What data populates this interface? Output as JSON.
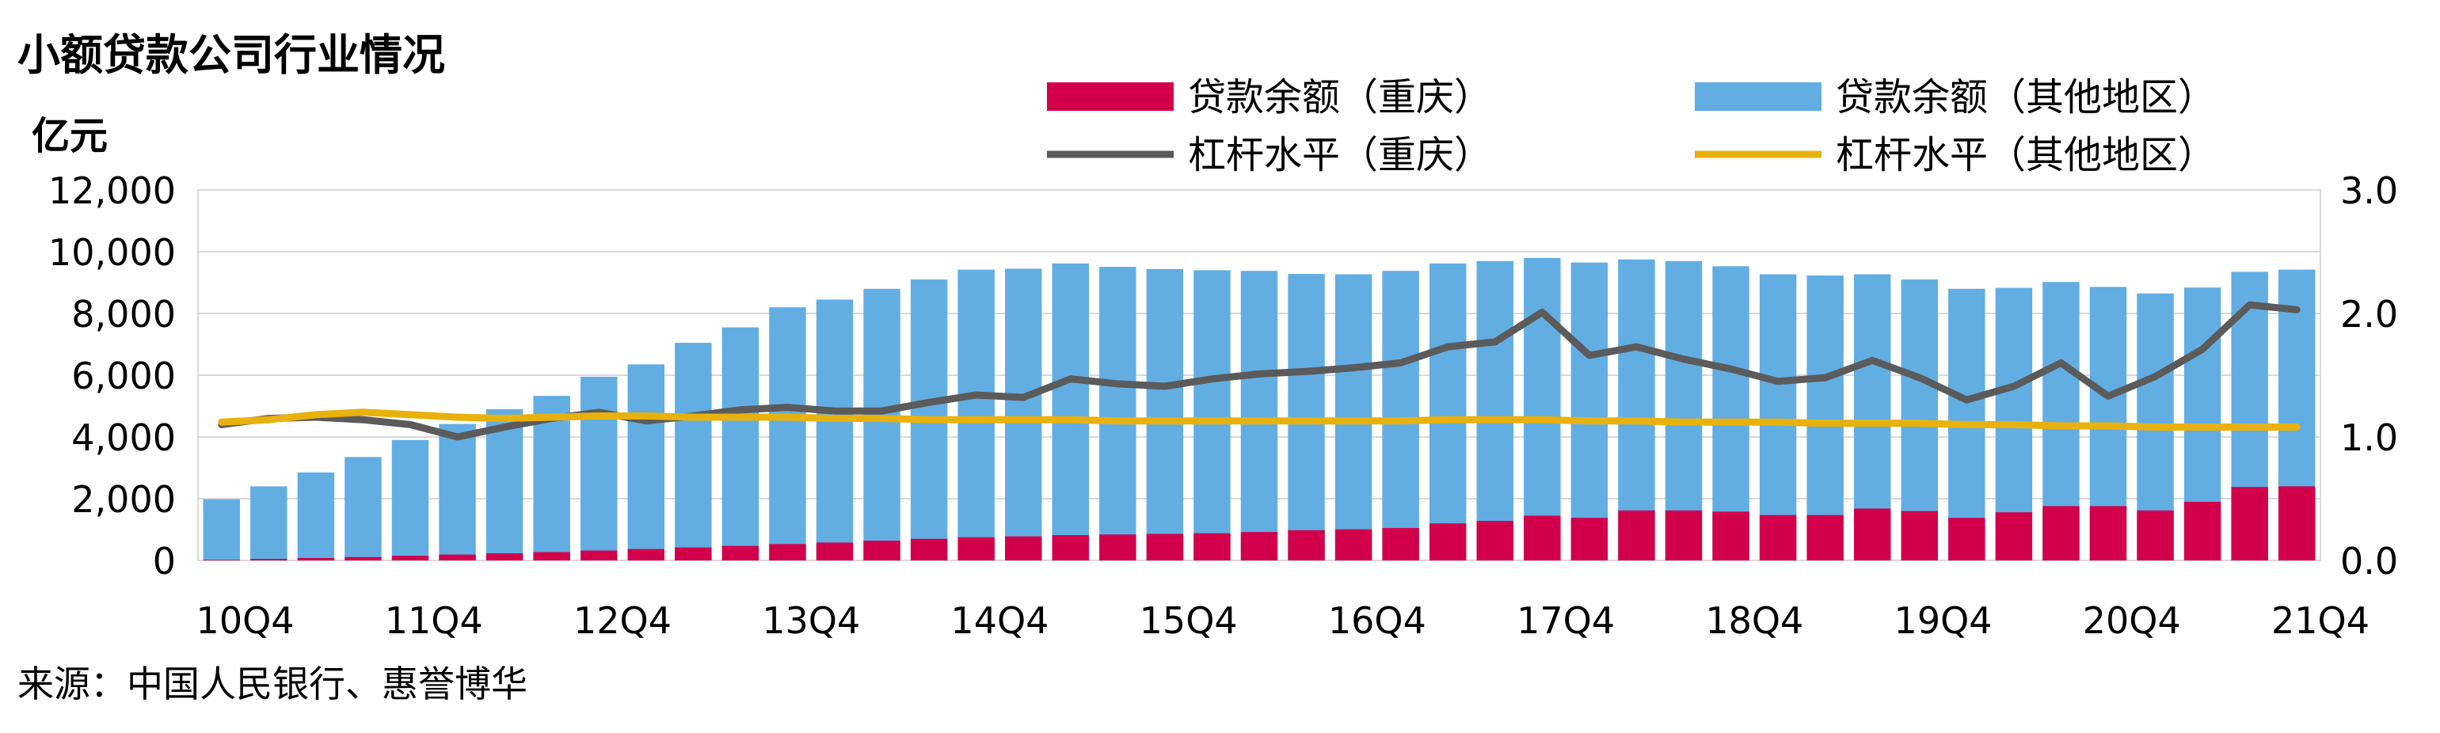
{
  "chart_data": {
    "type": "bar",
    "title": "小额贷款公司行业情况",
    "ylabel": "亿元",
    "source": "来源：中国人民银行、惠誉博华",
    "ylim": [
      0,
      12000
    ],
    "y2lim": [
      0,
      3
    ],
    "yticks": [
      "0",
      "2,000",
      "4,000",
      "6,000",
      "8,000",
      "10,000",
      "12,000"
    ],
    "y2ticks": [
      "0.0",
      "1.0",
      "2.0",
      "3.0"
    ],
    "xtick_labels": [
      "10Q4",
      "11Q4",
      "12Q4",
      "13Q4",
      "14Q4",
      "15Q4",
      "16Q4",
      "17Q4",
      "18Q4",
      "19Q4",
      "20Q4",
      "21Q4"
    ],
    "categories": [
      "10Q4",
      "11Q1",
      "11Q2",
      "11Q3",
      "11Q4",
      "12Q1",
      "12Q2",
      "12Q3",
      "12Q4",
      "13Q1",
      "13Q2",
      "13Q3",
      "13Q4",
      "14Q1",
      "14Q2",
      "14Q3",
      "14Q4",
      "15Q1",
      "15Q2",
      "15Q3",
      "15Q4",
      "16Q1",
      "16Q2",
      "16Q3",
      "16Q4",
      "17Q1",
      "17Q2",
      "17Q3",
      "17Q4",
      "18Q1",
      "18Q2",
      "18Q3",
      "18Q4",
      "19Q1",
      "19Q2",
      "19Q3",
      "19Q4",
      "20Q1",
      "20Q2",
      "20Q3",
      "20Q4",
      "21Q1",
      "21Q2",
      "21Q3",
      "21Q4"
    ],
    "legend_position": "top-right",
    "series": [
      {
        "name": "贷款余额（重庆）",
        "kind": "bar",
        "axis": "left",
        "color": "#d2004b",
        "values": [
          20,
          50,
          80,
          110,
          150,
          190,
          230,
          270,
          320,
          370,
          420,
          470,
          530,
          580,
          640,
          700,
          750,
          780,
          820,
          840,
          860,
          880,
          920,
          980,
          1010,
          1050,
          1200,
          1280,
          1450,
          1380,
          1620,
          1620,
          1580,
          1470,
          1470,
          1680,
          1600,
          1380,
          1560,
          1760,
          1760,
          1620,
          1900,
          2380,
          2400
        ]
      },
      {
        "name": "贷款余额（其他地区）",
        "kind": "bar_stacked",
        "axis": "left",
        "color": "#62aee3",
        "totals": [
          1980,
          2400,
          2850,
          3350,
          3900,
          4420,
          4900,
          5330,
          5950,
          6350,
          7050,
          7550,
          8200,
          8450,
          8800,
          9100,
          9420,
          9450,
          9620,
          9510,
          9440,
          9400,
          9380,
          9280,
          9270,
          9380,
          9620,
          9700,
          9800,
          9650,
          9750,
          9700,
          9530,
          9270,
          9230,
          9270,
          9100,
          8800,
          8830,
          9020,
          8860,
          8650,
          8840,
          9350,
          9420
        ]
      },
      {
        "name": "杠杆水平（重庆）",
        "kind": "line",
        "axis": "right",
        "color": "#5b5b5b",
        "values": [
          1.1,
          1.15,
          1.16,
          1.14,
          1.1,
          1.0,
          1.08,
          1.15,
          1.2,
          1.13,
          1.17,
          1.22,
          1.24,
          1.21,
          1.21,
          1.28,
          1.34,
          1.32,
          1.47,
          1.43,
          1.41,
          1.47,
          1.51,
          1.53,
          1.56,
          1.6,
          1.73,
          1.77,
          2.01,
          1.66,
          1.73,
          1.63,
          1.55,
          1.45,
          1.48,
          1.62,
          1.48,
          1.3,
          1.41,
          1.6,
          1.33,
          1.49,
          1.71,
          2.07,
          2.03
        ]
      },
      {
        "name": "杠杆水平（其他地区）",
        "kind": "line",
        "axis": "right",
        "color": "#e8b10b",
        "values": [
          1.12,
          1.14,
          1.18,
          1.2,
          1.18,
          1.16,
          1.15,
          1.16,
          1.17,
          1.17,
          1.16,
          1.16,
          1.16,
          1.15,
          1.15,
          1.14,
          1.14,
          1.14,
          1.14,
          1.13,
          1.13,
          1.13,
          1.13,
          1.13,
          1.13,
          1.13,
          1.14,
          1.14,
          1.14,
          1.13,
          1.13,
          1.12,
          1.12,
          1.12,
          1.11,
          1.11,
          1.11,
          1.1,
          1.1,
          1.09,
          1.09,
          1.08,
          1.08,
          1.08,
          1.08
        ]
      }
    ]
  }
}
